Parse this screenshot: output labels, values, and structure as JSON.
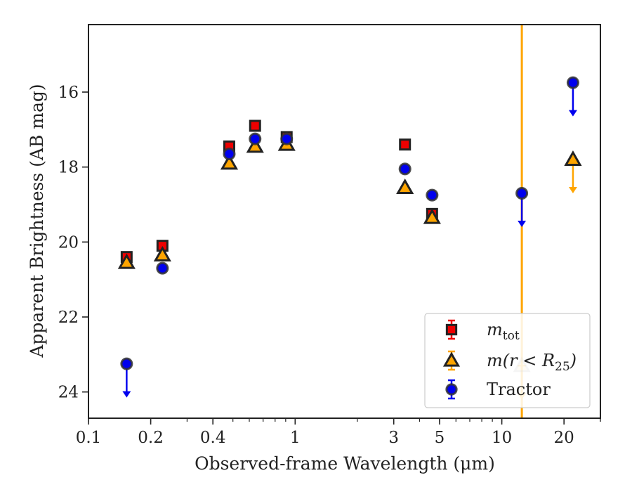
{
  "chart_data": {
    "type": "scatter",
    "xlabel": "Observed-frame Wavelength (μm)",
    "ylabel": "Apparent Brightness (AB mag)",
    "xscale": "log",
    "xlim": [
      0.1,
      30
    ],
    "ylim": [
      24.7,
      14.2
    ],
    "y_inverted": true,
    "xticks": [
      {
        "value": 0.1,
        "label": "0.1"
      },
      {
        "value": 0.2,
        "label": "0.2"
      },
      {
        "value": 0.4,
        "label": "0.4"
      },
      {
        "value": 1,
        "label": "1"
      },
      {
        "value": 3,
        "label": "3"
      },
      {
        "value": 5,
        "label": "5"
      },
      {
        "value": 10,
        "label": "10"
      },
      {
        "value": 20,
        "label": "20"
      }
    ],
    "yticks": [
      {
        "value": 16,
        "label": "16"
      },
      {
        "value": 18,
        "label": "18"
      },
      {
        "value": 20,
        "label": "20"
      },
      {
        "value": 22,
        "label": "22"
      },
      {
        "value": 24,
        "label": "24"
      }
    ],
    "vertical_line": {
      "x": 12.5,
      "color": "#FFA500"
    },
    "legend_position": "lower right",
    "series": [
      {
        "name": "m_tot",
        "legend_label": {
          "base": "m",
          "sub": "tot"
        },
        "marker": "square",
        "color": "#EE0000",
        "edge_color": "#222222",
        "x": [
          0.153,
          0.228,
          0.48,
          0.64,
          0.91,
          3.4,
          4.6
        ],
        "y": [
          20.4,
          20.1,
          17.45,
          16.9,
          17.2,
          17.4,
          19.25
        ],
        "upper_limit": [
          false,
          false,
          false,
          false,
          false,
          false,
          false
        ]
      },
      {
        "name": "m(r < R25)",
        "legend_label": {
          "base": "m(r < R",
          "sub": "25",
          "tail": ")"
        },
        "marker": "triangle",
        "color": "#FFA500",
        "edge_color": "#222222",
        "x": [
          0.153,
          0.228,
          0.48,
          0.64,
          0.91,
          3.4,
          4.6,
          12.5,
          22.1
        ],
        "y": [
          20.55,
          20.35,
          17.9,
          17.45,
          17.4,
          18.55,
          19.35,
          23.3,
          17.8
        ],
        "upper_limit": [
          false,
          false,
          false,
          false,
          false,
          false,
          false,
          true,
          true
        ]
      },
      {
        "name": "Tractor",
        "legend_label": {
          "base": "Tractor"
        },
        "marker": "circle",
        "color": "#0000EE",
        "edge_color": "#333333",
        "x": [
          0.153,
          0.228,
          0.48,
          0.64,
          0.91,
          3.4,
          4.6,
          12.5,
          22.1
        ],
        "y": [
          23.25,
          20.7,
          17.65,
          17.25,
          17.25,
          18.05,
          18.75,
          18.7,
          15.75
        ],
        "upper_limit": [
          true,
          false,
          false,
          false,
          false,
          false,
          false,
          true,
          true
        ]
      }
    ]
  }
}
